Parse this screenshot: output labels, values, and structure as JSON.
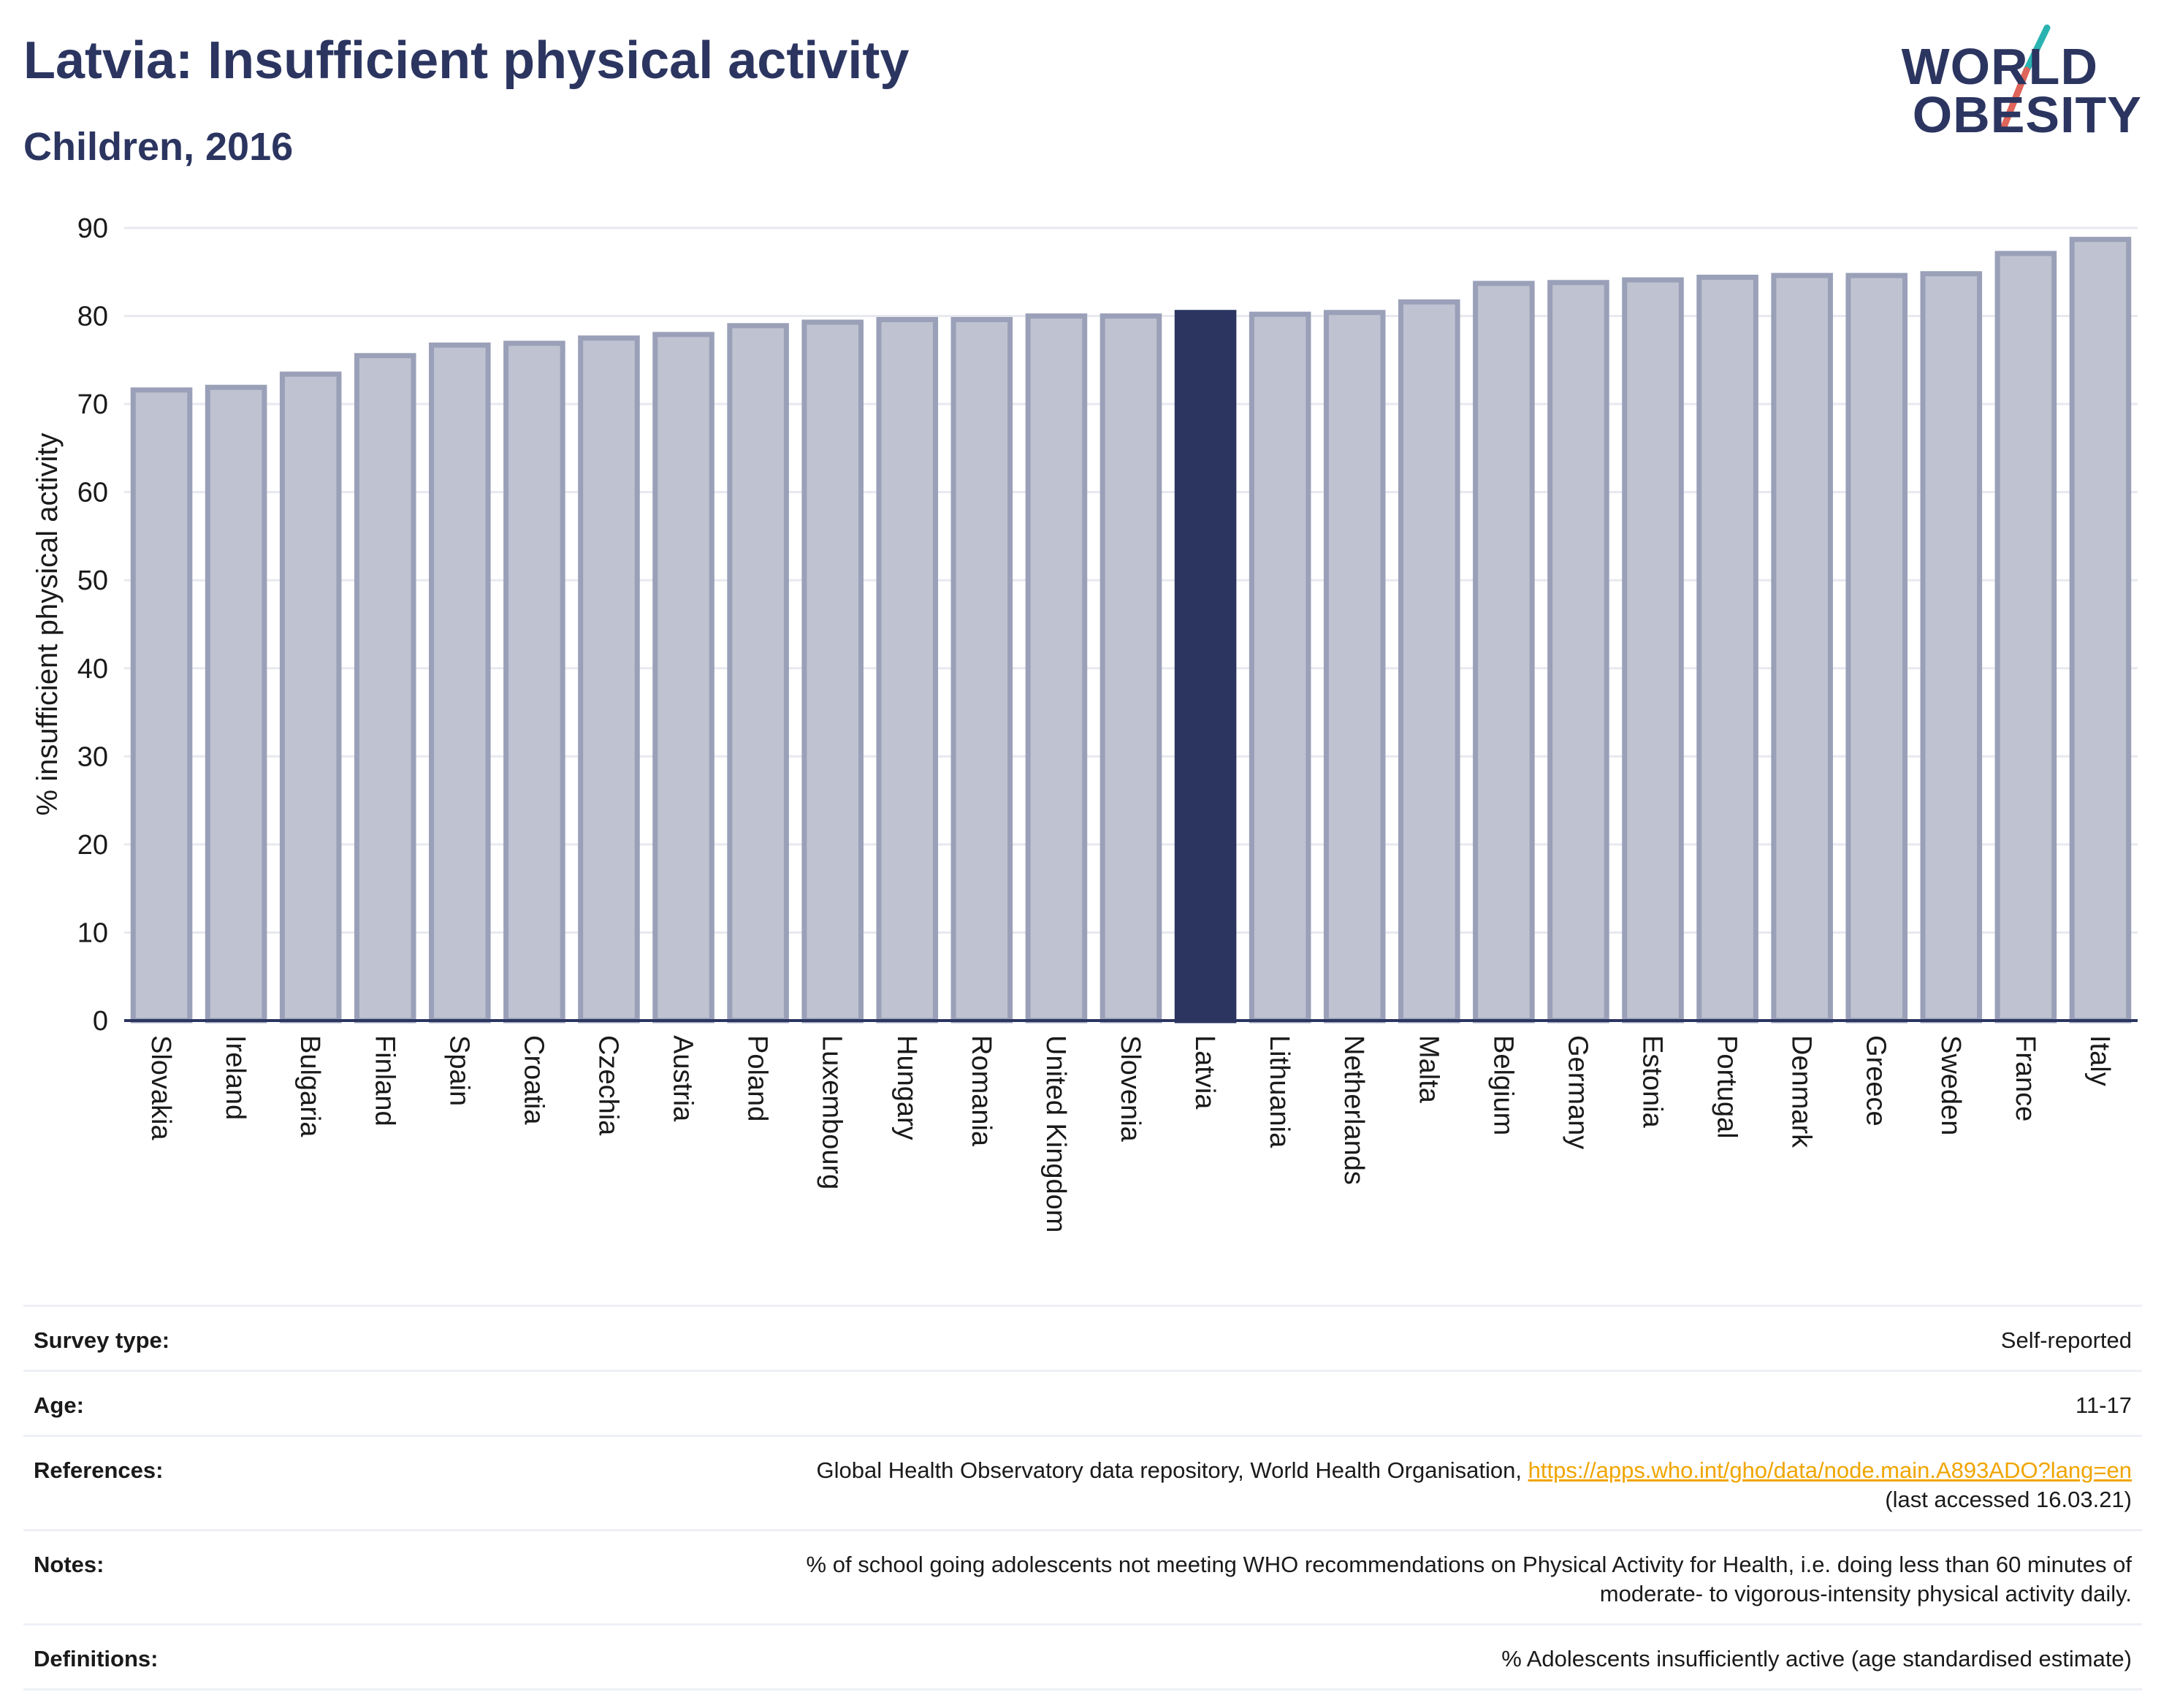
{
  "title": "Latvia: Insufficient physical activity",
  "subtitle": "Children, 2016",
  "logo": {
    "line1": "WORLD",
    "line2": "OBESITY"
  },
  "colors": {
    "highlight": "#2b3560",
    "bar": "#bfc2d0",
    "bar_edge": "#9aa0b8",
    "text": "#2b3560",
    "grid": "#e8e9ef",
    "accent_teal": "#2ab3b1",
    "accent_coral": "#e0655a"
  },
  "chart_data": {
    "type": "bar",
    "categories": [
      "Slovakia",
      "Ireland",
      "Bulgaria",
      "Finland",
      "Spain",
      "Croatia",
      "Czechia",
      "Austria",
      "Poland",
      "Luxembourg",
      "Hungary",
      "Romania",
      "United Kingdom",
      "Slovenia",
      "Latvia",
      "Lithuania",
      "Netherlands",
      "Malta",
      "Belgium",
      "Germany",
      "Estonia",
      "Portugal",
      "Denmark",
      "Greece",
      "Sweden",
      "France",
      "Italy"
    ],
    "values": [
      71.6,
      71.9,
      73.4,
      75.5,
      76.7,
      76.9,
      77.5,
      77.9,
      78.9,
      79.3,
      79.6,
      79.6,
      80.0,
      80.0,
      80.4,
      80.2,
      80.4,
      81.6,
      83.7,
      83.8,
      84.1,
      84.4,
      84.6,
      84.6,
      84.8,
      87.1,
      88.7
    ],
    "highlight": "Latvia",
    "title": "Latvia: Insufficient physical activity",
    "xlabel": "",
    "ylabel": "% insufficient physical activity",
    "ylim": [
      0,
      90
    ],
    "yticks": [
      0,
      10,
      20,
      30,
      40,
      50,
      60,
      70,
      80,
      90
    ],
    "grid": true
  },
  "meta": {
    "survey": {
      "label": "Survey type:",
      "value": "Self-reported"
    },
    "age": {
      "label": "Age:",
      "value": "11-17"
    },
    "references": {
      "label": "References:",
      "text": "Global Health Observatory data repository, World Health Organisation, ",
      "link": "https://apps.who.int/gho/data/node.main.A893ADO?lang=en",
      "tail": "(last accessed 16.03.21)"
    },
    "notes": {
      "label": "Notes:",
      "line1": "% of school going adolescents not meeting WHO recommendations on Physical Activity for Health, i.e. doing less than 60 minutes of",
      "line2": "moderate- to vigorous-intensity physical activity daily."
    },
    "definitions": {
      "label": "Definitions:",
      "value": "% Adolescents insufficiently active (age standardised estimate)"
    }
  }
}
